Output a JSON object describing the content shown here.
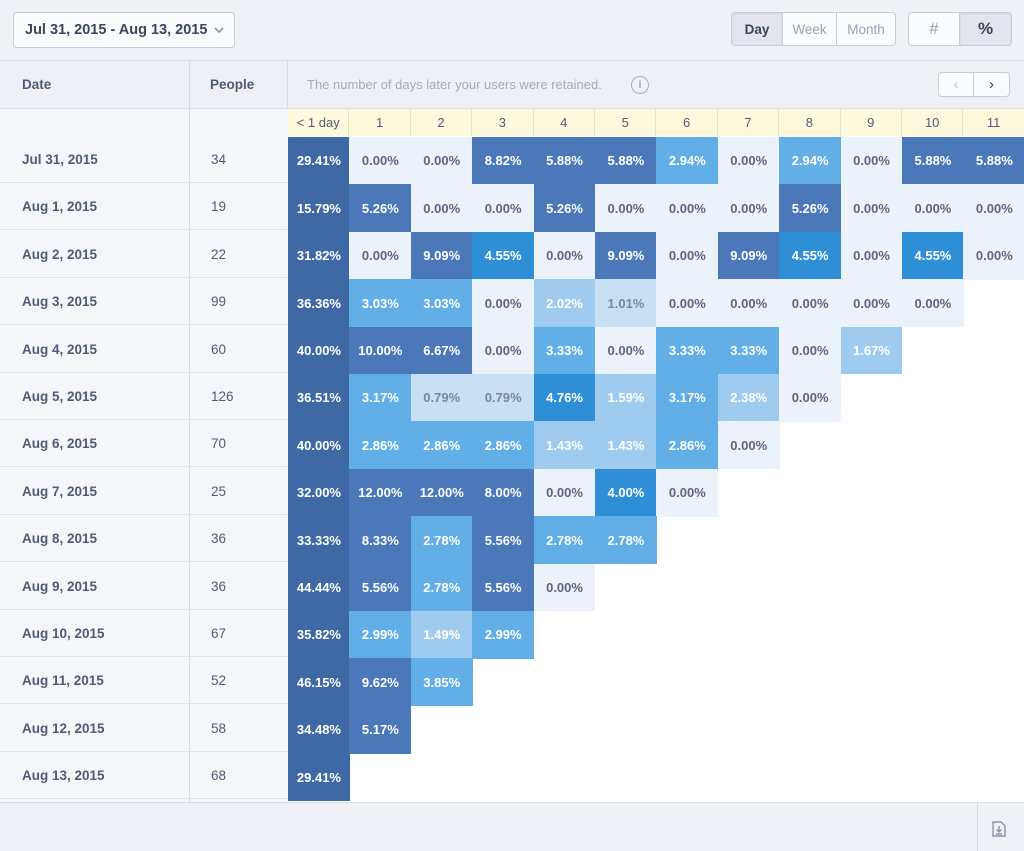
{
  "toolbar": {
    "date_range": "Jul 31, 2015 - Aug 13, 2015",
    "range_options": [
      {
        "label": "Day",
        "active": true
      },
      {
        "label": "Week",
        "active": false
      },
      {
        "label": "Month",
        "active": false
      }
    ],
    "mode_options": [
      {
        "label": "#",
        "active": false
      },
      {
        "label": "%",
        "active": true
      }
    ]
  },
  "header": {
    "date_label": "Date",
    "people_label": "People",
    "hint": "The number of days later your users were retained.",
    "info_icon": "i",
    "prev_label": "‹",
    "next_label": "›"
  },
  "day_headers": [
    "< 1 day",
    "1",
    "2",
    "3",
    "4",
    "5",
    "6",
    "7",
    "8",
    "9",
    "10",
    "11"
  ],
  "rows": [
    {
      "date": "Jul 31, 2015",
      "people": "34",
      "values": [
        "29.41%",
        "0.00%",
        "0.00%",
        "8.82%",
        "5.88%",
        "5.88%",
        "2.94%",
        "0.00%",
        "2.94%",
        "0.00%",
        "5.88%",
        "5.88%"
      ]
    },
    {
      "date": "Aug 1, 2015",
      "people": "19",
      "values": [
        "15.79%",
        "5.26%",
        "0.00%",
        "0.00%",
        "5.26%",
        "0.00%",
        "0.00%",
        "0.00%",
        "5.26%",
        "0.00%",
        "0.00%",
        "0.00%"
      ]
    },
    {
      "date": "Aug 2, 2015",
      "people": "22",
      "values": [
        "31.82%",
        "0.00%",
        "9.09%",
        "4.55%",
        "0.00%",
        "9.09%",
        "0.00%",
        "9.09%",
        "4.55%",
        "0.00%",
        "4.55%",
        "0.00%"
      ]
    },
    {
      "date": "Aug 3, 2015",
      "people": "99",
      "values": [
        "36.36%",
        "3.03%",
        "3.03%",
        "0.00%",
        "2.02%",
        "1.01%",
        "0.00%",
        "0.00%",
        "0.00%",
        "0.00%",
        "0.00%"
      ]
    },
    {
      "date": "Aug 4, 2015",
      "people": "60",
      "values": [
        "40.00%",
        "10.00%",
        "6.67%",
        "0.00%",
        "3.33%",
        "0.00%",
        "3.33%",
        "3.33%",
        "0.00%",
        "1.67%"
      ]
    },
    {
      "date": "Aug 5, 2015",
      "people": "126",
      "values": [
        "36.51%",
        "3.17%",
        "0.79%",
        "0.79%",
        "4.76%",
        "1.59%",
        "3.17%",
        "2.38%",
        "0.00%"
      ]
    },
    {
      "date": "Aug 6, 2015",
      "people": "70",
      "values": [
        "40.00%",
        "2.86%",
        "2.86%",
        "2.86%",
        "1.43%",
        "1.43%",
        "2.86%",
        "0.00%"
      ]
    },
    {
      "date": "Aug 7, 2015",
      "people": "25",
      "values": [
        "32.00%",
        "12.00%",
        "12.00%",
        "8.00%",
        "0.00%",
        "4.00%",
        "0.00%"
      ]
    },
    {
      "date": "Aug 8, 2015",
      "people": "36",
      "values": [
        "33.33%",
        "8.33%",
        "2.78%",
        "5.56%",
        "2.78%",
        "2.78%"
      ]
    },
    {
      "date": "Aug 9, 2015",
      "people": "36",
      "values": [
        "44.44%",
        "5.56%",
        "2.78%",
        "5.56%",
        "0.00%"
      ]
    },
    {
      "date": "Aug 10, 2015",
      "people": "67",
      "values": [
        "35.82%",
        "2.99%",
        "1.49%",
        "2.99%"
      ]
    },
    {
      "date": "Aug 11, 2015",
      "people": "52",
      "values": [
        "46.15%",
        "9.62%",
        "3.85%"
      ]
    },
    {
      "date": "Aug 12, 2015",
      "people": "58",
      "values": [
        "34.48%",
        "5.17%"
      ]
    },
    {
      "date": "Aug 13, 2015",
      "people": "68",
      "values": [
        "29.41%"
      ]
    }
  ],
  "colors": {
    "darkest": "#3f69a4",
    "dark": "#4a78b8",
    "bright": "#2f8fd6",
    "mid": "#62aee6",
    "light": "#9ecbee",
    "faint": "#c7e0f4",
    "zero": "#ebf2fa",
    "header_yellow": "#fdf9dc"
  }
}
